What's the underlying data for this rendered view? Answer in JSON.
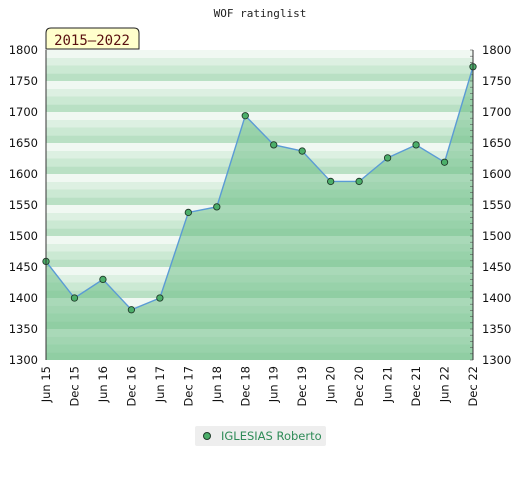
{
  "chart_data": {
    "type": "area",
    "title": "WOF ratinglist",
    "badge": "2015–2022",
    "categories": [
      "Jun 15",
      "Dec 15",
      "Jun 16",
      "Dec 16",
      "Jun 17",
      "Dec 17",
      "Jun 18",
      "Dec 18",
      "Jun 19",
      "Dec 19",
      "Jun 20",
      "Dec 20",
      "Jun 21",
      "Dec 21",
      "Jun 22",
      "Dec 22"
    ],
    "series": [
      {
        "name": "IGLESIAS Roberto",
        "values": [
          1459,
          1400,
          1430,
          1381,
          1400,
          1538,
          1547,
          1694,
          1647,
          1637,
          1588,
          1588,
          1626,
          1647,
          1619,
          1773
        ]
      }
    ],
    "ylim": [
      1300,
      1800
    ],
    "yticks": [
      1300,
      1350,
      1400,
      1450,
      1500,
      1550,
      1600,
      1650,
      1700,
      1750,
      1800
    ],
    "grid": true,
    "legend_position": "bottom",
    "colors": {
      "line": "#5b9bd5",
      "marker": "#4caf6a",
      "fill": "#6fbf89"
    }
  }
}
